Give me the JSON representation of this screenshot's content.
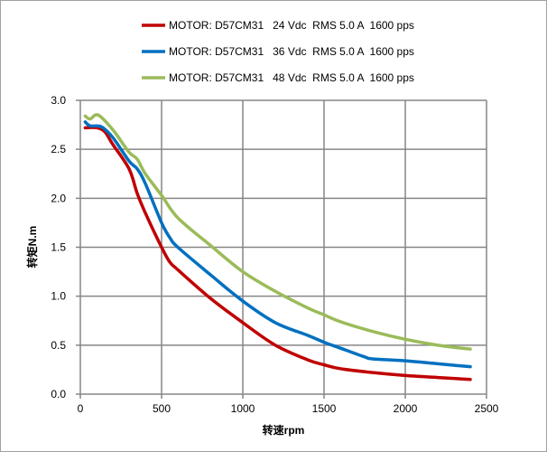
{
  "chart_data": {
    "type": "line",
    "title": "",
    "xlabel": "转速rpm",
    "ylabel": "转矩N.m",
    "xlim": [
      0,
      2500
    ],
    "ylim": [
      0,
      3.0
    ],
    "xticks": [
      "0",
      "500",
      "1000",
      "1500",
      "2000",
      "2500"
    ],
    "yticks": [
      "0.0",
      "0.5",
      "1.0",
      "1.5",
      "2.0",
      "2.5",
      "3.0"
    ],
    "grid": true,
    "legend_position": "top",
    "series": [
      {
        "name": "MOTOR: D57CM31   24 Vdc  RMS 5.0 A  1600 pps",
        "color": "#c00000",
        "x": [
          30,
          100,
          150,
          200,
          300,
          350,
          400,
          500,
          550,
          600,
          800,
          1000,
          1200,
          1400,
          1500,
          1600,
          1800,
          2000,
          2200,
          2400
        ],
        "y": [
          2.72,
          2.72,
          2.68,
          2.55,
          2.3,
          2.05,
          1.85,
          1.5,
          1.35,
          1.27,
          0.98,
          0.73,
          0.5,
          0.35,
          0.3,
          0.26,
          0.22,
          0.19,
          0.17,
          0.15
        ]
      },
      {
        "name": "MOTOR: D57CM31   36 Vdc  RMS 5.0 A  1600 pps",
        "color": "#0070c0",
        "x": [
          30,
          60,
          130,
          200,
          300,
          350,
          400,
          500,
          550,
          600,
          800,
          1000,
          1200,
          1400,
          1500,
          1600,
          1750,
          1800,
          2000,
          2200,
          2400
        ],
        "y": [
          2.78,
          2.74,
          2.73,
          2.62,
          2.38,
          2.3,
          2.15,
          1.75,
          1.6,
          1.5,
          1.22,
          0.95,
          0.73,
          0.6,
          0.53,
          0.47,
          0.38,
          0.36,
          0.34,
          0.31,
          0.28
        ]
      },
      {
        "name": "MOTOR: D57CM31   48 Vdc  RMS 5.0 A  1600 pps",
        "color": "#9bbb59",
        "x": [
          30,
          60,
          110,
          200,
          300,
          350,
          400,
          500,
          600,
          800,
          1000,
          1200,
          1400,
          1500,
          1600,
          1800,
          2000,
          2200,
          2400
        ],
        "y": [
          2.84,
          2.81,
          2.85,
          2.7,
          2.47,
          2.4,
          2.25,
          2.03,
          1.8,
          1.52,
          1.25,
          1.05,
          0.88,
          0.81,
          0.74,
          0.64,
          0.56,
          0.5,
          0.46
        ]
      }
    ]
  }
}
